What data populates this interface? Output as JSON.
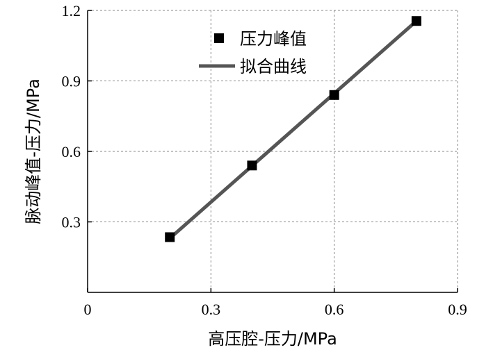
{
  "chart_data": {
    "type": "scatter",
    "xlabel": "高压腔-压力/MPa",
    "ylabel": "脉动峰值-压力/MPa",
    "xlim": [
      0,
      0.9
    ],
    "ylim": [
      0,
      1.2
    ],
    "x_ticks": [
      0,
      0.3,
      0.6,
      0.9
    ],
    "y_ticks": [
      0.3,
      0.6,
      0.9,
      1.2
    ],
    "x_tick_labels": [
      "0",
      "0.3",
      "0.6",
      "0.9"
    ],
    "y_tick_labels": [
      "0.3",
      "0.6",
      "0.9",
      "1.2"
    ],
    "grid": "dashed",
    "legend_position": "top-center",
    "series": [
      {
        "name": "压力峰值",
        "kind": "scatter",
        "marker": "square",
        "color": "#000000",
        "x": [
          0.2,
          0.4,
          0.6,
          0.8
        ],
        "y": [
          0.235,
          0.54,
          0.84,
          1.155
        ]
      },
      {
        "name": "拟合曲线",
        "kind": "line",
        "color": "#555555",
        "x": [
          0.2,
          0.8
        ],
        "y": [
          0.23,
          1.155
        ]
      }
    ]
  }
}
